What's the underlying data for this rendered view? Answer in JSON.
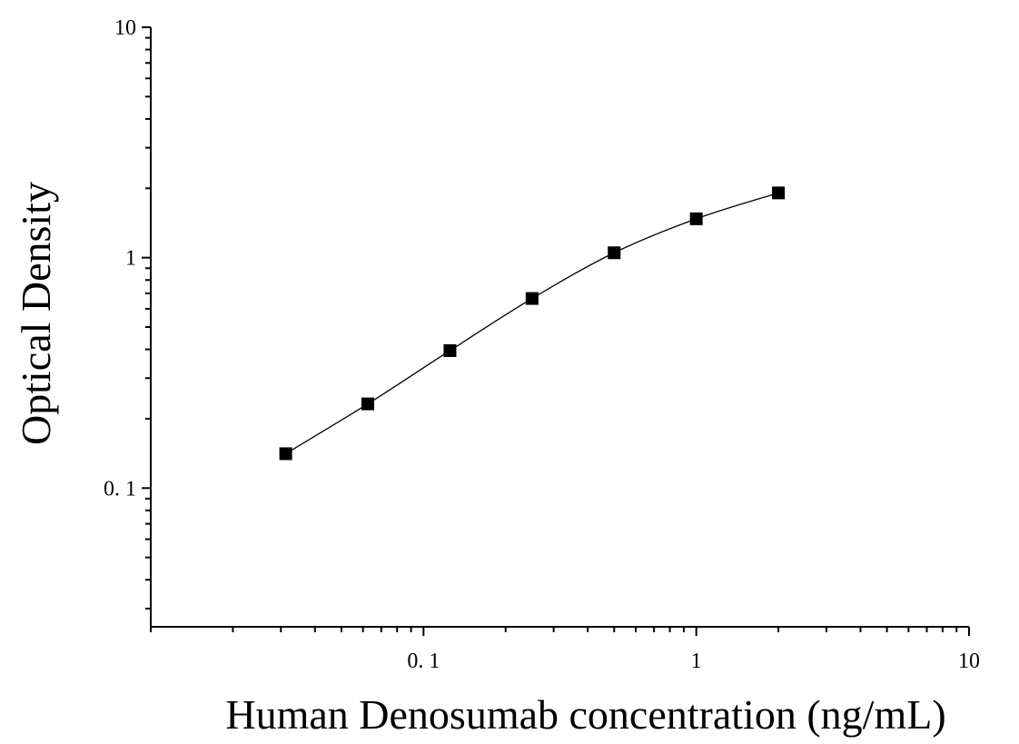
{
  "chart_data": {
    "type": "scatter",
    "title": "",
    "xlabel": "Human Denosumab concentration (ng/mL)",
    "ylabel": "Optical Density",
    "xscale": "log",
    "yscale": "log",
    "xlim": [
      0.01,
      10
    ],
    "ylim": [
      0.025,
      10
    ],
    "x_ticks": [
      {
        "value": 0.1,
        "label": "0. 1"
      },
      {
        "value": 1,
        "label": "1"
      },
      {
        "value": 10,
        "label": "10"
      }
    ],
    "y_ticks": [
      {
        "value": 0.1,
        "label": "0. 1"
      },
      {
        "value": 1,
        "label": "1"
      },
      {
        "value": 10,
        "label": "10"
      }
    ],
    "grid": false,
    "legend": "none",
    "series": [
      {
        "marker": "square",
        "color": "#000000",
        "fit_line": true,
        "x": [
          0.03125,
          0.0625,
          0.125,
          0.25,
          0.5,
          1,
          2
        ],
        "y": [
          0.141,
          0.232,
          0.395,
          0.665,
          1.05,
          1.475,
          1.91
        ]
      }
    ]
  }
}
